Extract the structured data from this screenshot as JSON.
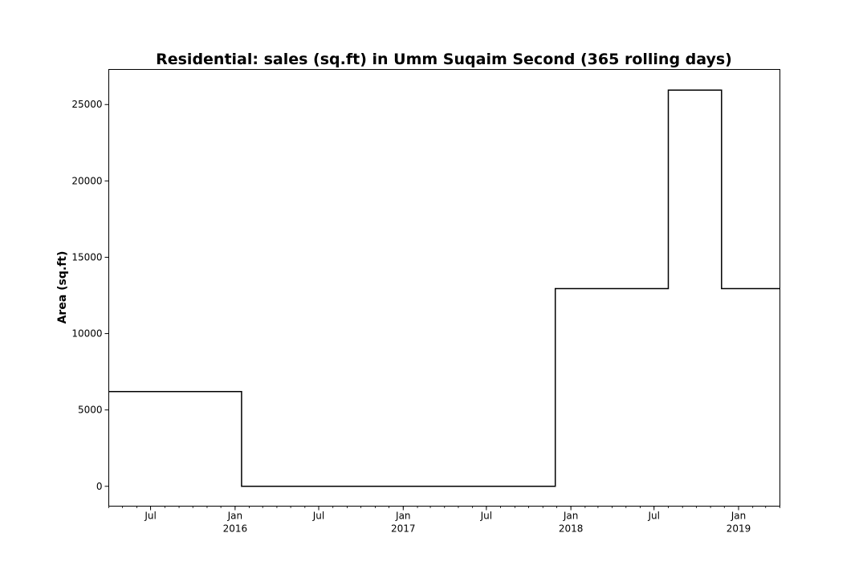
{
  "chart_data": {
    "type": "line",
    "step": true,
    "title": "Residential: sales (sq.ft) in Umm Suqaim Second (365 rolling days)",
    "xlabel": "",
    "ylabel": "Area (sq.ft)",
    "xlim": [
      "2015-04-01",
      "2019-04-01"
    ],
    "ylim": [
      -1300,
      27300
    ],
    "grid": false,
    "legend": "none",
    "line_color": "#000000",
    "y_ticks": [
      0,
      5000,
      10000,
      15000,
      20000,
      25000
    ],
    "y_tick_labels": [
      "0",
      "5000",
      "10000",
      "15000",
      "20000",
      "25000"
    ],
    "x_major_ticks": [
      {
        "date": "2015-07-01",
        "label": "Jul",
        "year": ""
      },
      {
        "date": "2016-01-01",
        "label": "Jan",
        "year": "2016"
      },
      {
        "date": "2016-07-01",
        "label": "Jul",
        "year": ""
      },
      {
        "date": "2017-01-01",
        "label": "Jan",
        "year": "2017"
      },
      {
        "date": "2017-07-01",
        "label": "Jul",
        "year": ""
      },
      {
        "date": "2018-01-01",
        "label": "Jan",
        "year": "2018"
      },
      {
        "date": "2018-07-01",
        "label": "Jul",
        "year": ""
      },
      {
        "date": "2019-01-01",
        "label": "Jan",
        "year": "2019"
      }
    ],
    "series": [
      {
        "points": [
          {
            "x": "2015-04-01",
            "y": 6200
          },
          {
            "x": "2016-01-15",
            "y": 6200
          },
          {
            "x": "2016-01-15",
            "y": 0
          },
          {
            "x": "2017-11-28",
            "y": 0
          },
          {
            "x": "2017-11-28",
            "y": 12950
          },
          {
            "x": "2018-08-01",
            "y": 12950
          },
          {
            "x": "2018-08-01",
            "y": 25950
          },
          {
            "x": "2018-11-25",
            "y": 25950
          },
          {
            "x": "2018-11-25",
            "y": 12950
          },
          {
            "x": "2019-04-01",
            "y": 12950
          }
        ]
      }
    ]
  }
}
